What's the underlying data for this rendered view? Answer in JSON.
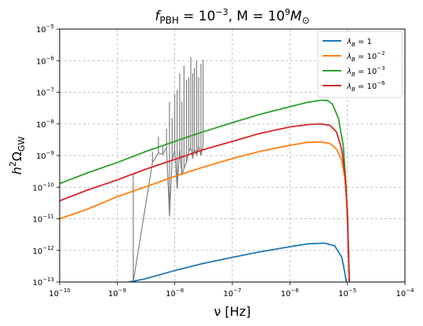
{
  "chart_data": {
    "type": "line",
    "title_parts": {
      "f_sym": "f",
      "f_sub": "PBH",
      "f_eq": " = 10",
      "f_exp": "−3",
      "m_sep": ", M = 10",
      "m_exp": "9",
      "m_end": "M",
      "m_sub": "⊙"
    },
    "xlabel": "ν [Hz]",
    "ylabel_parts": {
      "h": "h",
      "h_sup": "2",
      "omega": "Ω",
      "omega_sub": "GW"
    },
    "x_scale": "log",
    "y_scale": "log",
    "xlim": [
      1e-10,
      0.0001
    ],
    "ylim": [
      1e-13,
      1e-05
    ],
    "grid": true,
    "legend_position": "top-right",
    "x_ticks": [
      {
        "base": "10",
        "exp": "−10",
        "value": 1e-10
      },
      {
        "base": "10",
        "exp": "−9",
        "value": 1e-09
      },
      {
        "base": "10",
        "exp": "−8",
        "value": 1e-08
      },
      {
        "base": "10",
        "exp": "−7",
        "value": 1e-07
      },
      {
        "base": "10",
        "exp": "−6",
        "value": 1e-06
      },
      {
        "base": "10",
        "exp": "−5",
        "value": 1e-05
      },
      {
        "base": "10",
        "exp": "−4",
        "value": 0.0001
      }
    ],
    "y_ticks": [
      {
        "base": "10",
        "exp": "−13",
        "value": 1e-13
      },
      {
        "base": "10",
        "exp": "−12",
        "value": 1e-12
      },
      {
        "base": "10",
        "exp": "−11",
        "value": 1e-11
      },
      {
        "base": "10",
        "exp": "−10",
        "value": 1e-10
      },
      {
        "base": "10",
        "exp": "−9",
        "value": 1e-09
      },
      {
        "base": "10",
        "exp": "−8",
        "value": 1e-08
      },
      {
        "base": "10",
        "exp": "−7",
        "value": 1e-07
      },
      {
        "base": "10",
        "exp": "−6",
        "value": 1e-06
      },
      {
        "base": "10",
        "exp": "−5",
        "value": 1e-05
      }
    ],
    "series": [
      {
        "name_parts": {
          "sym": "λ",
          "sub": "B",
          "eq": " = 1",
          "exp": ""
        },
        "color": "#1f77b4",
        "x": [
          1.6e-09,
          3e-09,
          1e-08,
          3e-08,
          1e-07,
          3e-07,
          1e-06,
          2e-06,
          4e-06,
          6e-06,
          8e-06,
          9e-06,
          9.6e-06
        ],
        "y": [
          1e-13,
          1.25e-13,
          2.3e-13,
          3.8e-13,
          6e-13,
          9e-13,
          1.3e-12,
          1.6e-12,
          1.7e-12,
          1.4e-12,
          6e-13,
          2e-13,
          1e-13
        ]
      },
      {
        "name_parts": {
          "sym": "λ",
          "sub": "B",
          "eq": " = 10",
          "exp": "−2"
        },
        "color": "#ff7f0e",
        "x": [
          1e-10,
          3e-10,
          1e-09,
          3e-09,
          1e-08,
          3e-08,
          1e-07,
          3e-07,
          1e-06,
          2e-06,
          3.5e-06,
          5e-06,
          6.5e-06,
          8e-06,
          9e-06,
          1e-05,
          1.05e-05,
          1.08e-05
        ],
        "y": [
          1e-11,
          2e-11,
          5e-11,
          1e-10,
          2.2e-10,
          4.2e-10,
          8e-10,
          1.35e-09,
          2.1e-09,
          2.6e-09,
          2.7e-09,
          2.4e-09,
          1.6e-09,
          7e-10,
          2e-10,
          2e-11,
          8e-13,
          1e-13
        ]
      },
      {
        "name_parts": {
          "sym": "λ",
          "sub": "B",
          "eq": " = 10",
          "exp": "−3"
        },
        "color": "#2ca02c",
        "x": [
          1e-10,
          3e-10,
          1e-09,
          3e-09,
          1e-08,
          3e-08,
          1e-07,
          3e-07,
          1e-06,
          2e-06,
          3.5e-06,
          4.5e-06,
          5.5e-06,
          7e-06,
          8.5e-06,
          9.5e-06,
          1.05e-05,
          1.08e-05
        ],
        "y": [
          1.3e-10,
          2.8e-10,
          6e-10,
          1.3e-09,
          2.8e-09,
          5.5e-09,
          1.1e-08,
          2e-08,
          3.5e-08,
          4.8e-08,
          5.6e-08,
          5.5e-08,
          4.2e-08,
          1.5e-08,
          2e-09,
          1e-10,
          8e-13,
          1e-13
        ]
      },
      {
        "name_parts": {
          "sym": "λ",
          "sub": "B",
          "eq": " = 10",
          "exp": "−6"
        },
        "color": "#d62728",
        "x": [
          1e-10,
          3e-10,
          1e-09,
          3e-09,
          1e-08,
          3e-08,
          1e-07,
          3e-07,
          1e-06,
          2e-06,
          3.5e-06,
          5e-06,
          6.5e-06,
          8e-06,
          9.2e-06,
          1e-05,
          1.05e-05,
          1.08e-05
        ],
        "y": [
          3.7e-11,
          8e-11,
          1.7e-10,
          3.6e-10,
          7.5e-10,
          1.5e-09,
          2.8e-09,
          5e-09,
          8e-09,
          9.5e-09,
          1e-08,
          9e-09,
          5.5e-09,
          1.5e-09,
          2e-10,
          1.5e-11,
          5e-13,
          1e-13
        ]
      }
    ],
    "gray_data": {
      "color": "#808080",
      "x": [
        1.9e-09,
        1.9e-09,
        1.9e-09,
        4.1e-09,
        4.1e-09,
        4.1e-09,
        5.2e-09,
        5.2e-09,
        5.2e-09,
        6.2e-09,
        6.2e-09,
        6.2e-09,
        7.2e-09,
        7.2e-09,
        7.2e-09,
        8.1e-09,
        8.1e-09,
        8.1e-09,
        9e-09,
        9e-09,
        9e-09,
        1e-08,
        1e-08,
        1e-08,
        1.1e-08,
        1.1e-08,
        1.1e-08,
        1.22e-08,
        1.22e-08,
        1.22e-08,
        1.33e-08,
        1.33e-08,
        1.33e-08,
        1.45e-08,
        1.45e-08,
        1.45e-08,
        1.6e-08,
        1.6e-08,
        1.6e-08,
        1.75e-08,
        1.75e-08,
        1.75e-08,
        1.9e-08,
        1.9e-08,
        1.9e-08,
        2.05e-08,
        2.05e-08,
        2.05e-08,
        2.2e-08,
        2.2e-08,
        2.2e-08,
        2.4e-08,
        2.4e-08,
        2.4e-08,
        2.6e-08,
        2.6e-08,
        2.6e-08,
        2.85e-08,
        2.85e-08,
        2.85e-08,
        3.1e-08,
        3.1e-08,
        3.1e-08
      ],
      "y": [
        1e-13,
        2.5e-10,
        1e-13,
        6e-10,
        1.3e-09,
        6e-10,
        1.2e-09,
        4e-09,
        1.2e-09,
        1.1e-09,
        2e-09,
        1.1e-09,
        1.8e-09,
        7e-09,
        1.8e-09,
        1.2e-11,
        5e-08,
        1.2e-11,
        7e-10,
        1.5e-08,
        7e-10,
        1.5e-09,
        9e-08,
        1.5e-09,
        9e-11,
        1.2e-07,
        9e-11,
        1.6e-09,
        4e-07,
        1.6e-09,
        2.4e-10,
        5e-08,
        2.4e-10,
        4e-10,
        7e-07,
        4e-10,
        6e-10,
        2.5e-07,
        6e-10,
        1.3e-09,
        3e-07,
        1.3e-09,
        1.8e-09,
        1.3e-06,
        1.8e-09,
        8e-10,
        4e-07,
        8e-10,
        1.6e-09,
        6e-07,
        1.6e-09,
        1e-09,
        1e-06,
        1e-09,
        2e-09,
        3e-07,
        2e-09,
        1e-09,
        8e-07,
        1e-09,
        2e-09,
        1.1e-06,
        2e-09
      ]
    }
  }
}
